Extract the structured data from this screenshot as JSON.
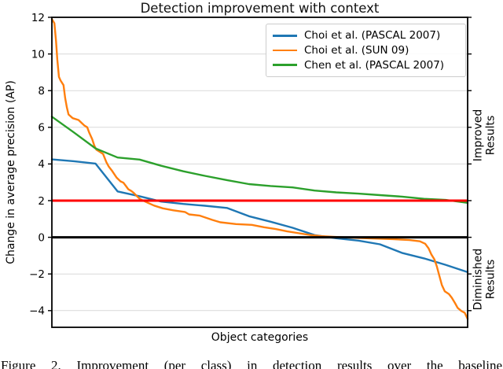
{
  "chart_data": {
    "type": "line",
    "title": "Detection improvement with context",
    "xlabel": "Object categories",
    "ylabel": "Change in average precision (AP)",
    "ylim": [
      -4.9,
      12
    ],
    "yticks": [
      12,
      10,
      8,
      6,
      4,
      2,
      0,
      -2,
      -4
    ],
    "grid": true,
    "legend_position": "upper right",
    "grid_color": "#d9d9d9",
    "right_labels": [
      {
        "line1": "Improved",
        "line2": "Results"
      },
      {
        "line1": "Diminished",
        "line2": "Results"
      }
    ],
    "reference_lines": [
      {
        "y": 2,
        "color": "#ff0000"
      },
      {
        "y": 0,
        "color": "#000000"
      }
    ],
    "series": [
      {
        "name": "Choi et al. (PASCAL 2007)",
        "color": "#1f77b4",
        "points": [
          [
            0.0,
            4.25
          ],
          [
            0.053,
            4.15
          ],
          [
            0.105,
            4.02
          ],
          [
            0.158,
            2.5
          ],
          [
            0.211,
            2.24
          ],
          [
            0.263,
            1.95
          ],
          [
            0.316,
            1.82
          ],
          [
            0.368,
            1.72
          ],
          [
            0.421,
            1.6
          ],
          [
            0.474,
            1.15
          ],
          [
            0.526,
            0.85
          ],
          [
            0.579,
            0.52
          ],
          [
            0.632,
            0.12
          ],
          [
            0.684,
            -0.05
          ],
          [
            0.737,
            -0.18
          ],
          [
            0.789,
            -0.38
          ],
          [
            0.842,
            -0.85
          ],
          [
            0.895,
            -1.15
          ],
          [
            0.947,
            -1.5
          ],
          [
            1.0,
            -1.9
          ]
        ]
      },
      {
        "name": "Choi et al. (SUN 09)",
        "color": "#ff7f0e",
        "points": [
          [
            0.0,
            11.9
          ],
          [
            0.006,
            11.68
          ],
          [
            0.01,
            10.7
          ],
          [
            0.013,
            9.7
          ],
          [
            0.017,
            8.75
          ],
          [
            0.021,
            8.55
          ],
          [
            0.028,
            8.3
          ],
          [
            0.032,
            7.6
          ],
          [
            0.036,
            7.1
          ],
          [
            0.04,
            6.7
          ],
          [
            0.05,
            6.5
          ],
          [
            0.064,
            6.4
          ],
          [
            0.078,
            6.1
          ],
          [
            0.085,
            6.0
          ],
          [
            0.09,
            5.7
          ],
          [
            0.097,
            5.35
          ],
          [
            0.102,
            5.0
          ],
          [
            0.107,
            4.78
          ],
          [
            0.116,
            4.65
          ],
          [
            0.123,
            4.55
          ],
          [
            0.131,
            4.1
          ],
          [
            0.137,
            3.85
          ],
          [
            0.144,
            3.65
          ],
          [
            0.15,
            3.45
          ],
          [
            0.156,
            3.25
          ],
          [
            0.165,
            3.05
          ],
          [
            0.172,
            2.98
          ],
          [
            0.178,
            2.8
          ],
          [
            0.184,
            2.62
          ],
          [
            0.191,
            2.53
          ],
          [
            0.197,
            2.42
          ],
          [
            0.203,
            2.28
          ],
          [
            0.21,
            2.12
          ],
          [
            0.216,
            2.04
          ],
          [
            0.231,
            1.88
          ],
          [
            0.246,
            1.73
          ],
          [
            0.267,
            1.58
          ],
          [
            0.292,
            1.47
          ],
          [
            0.32,
            1.38
          ],
          [
            0.33,
            1.25
          ],
          [
            0.356,
            1.18
          ],
          [
            0.386,
            0.95
          ],
          [
            0.405,
            0.82
          ],
          [
            0.443,
            0.72
          ],
          [
            0.481,
            0.68
          ],
          [
            0.51,
            0.55
          ],
          [
            0.538,
            0.45
          ],
          [
            0.566,
            0.32
          ],
          [
            0.595,
            0.22
          ],
          [
            0.623,
            0.12
          ],
          [
            0.65,
            0.06
          ],
          [
            0.68,
            0.02
          ],
          [
            0.72,
            -0.02
          ],
          [
            0.77,
            -0.06
          ],
          [
            0.82,
            -0.1
          ],
          [
            0.86,
            -0.15
          ],
          [
            0.885,
            -0.22
          ],
          [
            0.898,
            -0.35
          ],
          [
            0.906,
            -0.6
          ],
          [
            0.913,
            -0.95
          ],
          [
            0.92,
            -1.2
          ],
          [
            0.926,
            -1.6
          ],
          [
            0.932,
            -2.1
          ],
          [
            0.938,
            -2.6
          ],
          [
            0.945,
            -2.95
          ],
          [
            0.955,
            -3.1
          ],
          [
            0.962,
            -3.3
          ],
          [
            0.97,
            -3.6
          ],
          [
            0.976,
            -3.85
          ],
          [
            0.985,
            -4.02
          ],
          [
            0.993,
            -4.12
          ],
          [
            1.0,
            -4.45
          ]
        ]
      },
      {
        "name": "Chen et al. (PASCAL 2007)",
        "color": "#2ca02c",
        "points": [
          [
            0.0,
            6.58
          ],
          [
            0.053,
            5.72
          ],
          [
            0.105,
            4.85
          ],
          [
            0.158,
            4.35
          ],
          [
            0.211,
            4.24
          ],
          [
            0.263,
            3.9
          ],
          [
            0.316,
            3.6
          ],
          [
            0.368,
            3.35
          ],
          [
            0.421,
            3.12
          ],
          [
            0.474,
            2.9
          ],
          [
            0.526,
            2.8
          ],
          [
            0.579,
            2.72
          ],
          [
            0.632,
            2.55
          ],
          [
            0.684,
            2.45
          ],
          [
            0.737,
            2.38
          ],
          [
            0.789,
            2.3
          ],
          [
            0.842,
            2.22
          ],
          [
            0.895,
            2.1
          ],
          [
            0.947,
            2.04
          ],
          [
            1.0,
            1.88
          ]
        ]
      }
    ]
  },
  "caption": {
    "text": "Figure 2. Improvement (per class) in detection results over the baseline"
  }
}
